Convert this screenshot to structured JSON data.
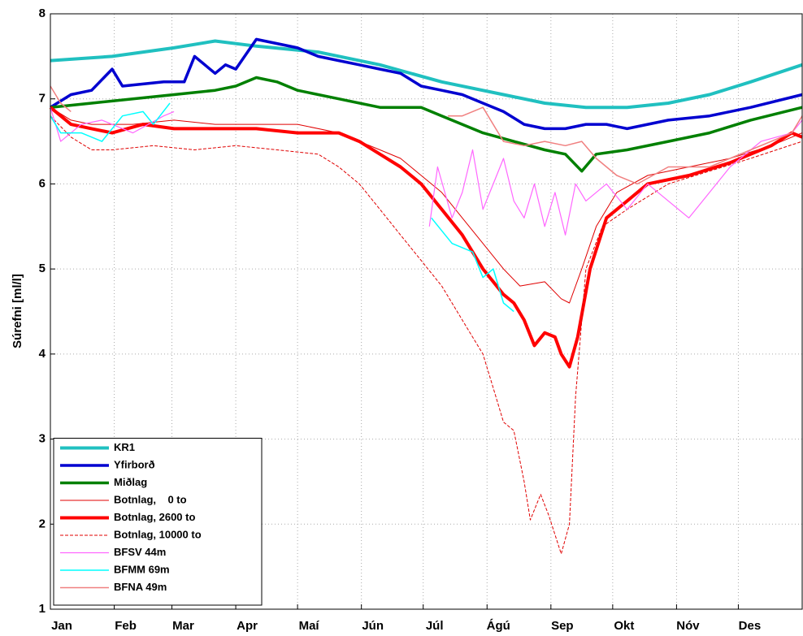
{
  "chart_data": {
    "type": "line",
    "ylabel": "Súrefni [ml/l]",
    "xlim": [
      0,
      365
    ],
    "xticks": [
      {
        "value": 0,
        "label": "Jan"
      },
      {
        "value": 31,
        "label": "Feb"
      },
      {
        "value": 59,
        "label": "Mar"
      },
      {
        "value": 90,
        "label": "Apr"
      },
      {
        "value": 120,
        "label": "Maí"
      },
      {
        "value": 151,
        "label": "Jún"
      },
      {
        "value": 181,
        "label": "Júl"
      },
      {
        "value": 212,
        "label": "Ágú"
      },
      {
        "value": 243,
        "label": "Sep"
      },
      {
        "value": 273,
        "label": "Okt"
      },
      {
        "value": 304,
        "label": "Nóv"
      },
      {
        "value": 334,
        "label": "Des"
      }
    ],
    "ylim": [
      1,
      8
    ],
    "yticks": [
      1,
      2,
      3,
      4,
      5,
      6,
      7,
      8
    ],
    "grid": true,
    "legend": "lower-left",
    "series": [
      {
        "name": "KR1",
        "color": "#20c0c0",
        "width": 4,
        "dash": "none",
        "x": [
          0,
          30,
          60,
          80,
          100,
          130,
          160,
          190,
          220,
          240,
          260,
          280,
          300,
          320,
          340,
          365
        ],
        "values": [
          7.45,
          7.5,
          7.6,
          7.68,
          7.62,
          7.55,
          7.4,
          7.2,
          7.05,
          6.95,
          6.9,
          6.9,
          6.95,
          7.05,
          7.2,
          7.4
        ]
      },
      {
        "name": "Yfirborð",
        "color": "#0000d0",
        "width": 3.5,
        "dash": "none",
        "x": [
          0,
          10,
          20,
          30,
          35,
          55,
          65,
          70,
          80,
          85,
          90,
          100,
          110,
          120,
          130,
          140,
          150,
          160,
          170,
          180,
          190,
          200,
          210,
          220,
          230,
          240,
          250,
          260,
          270,
          280,
          290,
          300,
          320,
          340,
          365
        ],
        "values": [
          6.9,
          7.05,
          7.1,
          7.35,
          7.15,
          7.2,
          7.2,
          7.5,
          7.3,
          7.4,
          7.35,
          7.7,
          7.65,
          7.6,
          7.5,
          7.45,
          7.4,
          7.35,
          7.3,
          7.15,
          7.1,
          7.05,
          6.95,
          6.85,
          6.7,
          6.65,
          6.65,
          6.7,
          6.7,
          6.65,
          6.7,
          6.75,
          6.8,
          6.9,
          7.05
        ]
      },
      {
        "name": "Miðlag",
        "color": "#008000",
        "width": 3.5,
        "dash": "none",
        "x": [
          0,
          20,
          40,
          60,
          80,
          90,
          100,
          110,
          120,
          140,
          160,
          180,
          190,
          210,
          225,
          240,
          250,
          258,
          265,
          280,
          300,
          320,
          340,
          365
        ],
        "values": [
          6.9,
          6.95,
          7.0,
          7.05,
          7.1,
          7.15,
          7.25,
          7.2,
          7.1,
          7.0,
          6.9,
          6.9,
          6.8,
          6.6,
          6.5,
          6.4,
          6.35,
          6.15,
          6.35,
          6.4,
          6.5,
          6.6,
          6.75,
          6.9
        ]
      },
      {
        "name": "Botnlag,    0 to",
        "color": "#e00000",
        "width": 1,
        "dash": "none",
        "x": [
          0,
          10,
          20,
          40,
          60,
          80,
          100,
          120,
          140,
          150,
          160,
          170,
          180,
          190,
          200,
          210,
          220,
          228,
          240,
          248,
          252,
          258,
          265,
          275,
          290,
          310,
          330,
          350,
          365
        ],
        "values": [
          6.9,
          6.75,
          6.7,
          6.7,
          6.75,
          6.7,
          6.7,
          6.7,
          6.6,
          6.5,
          6.4,
          6.3,
          6.1,
          5.9,
          5.6,
          5.3,
          5.0,
          4.8,
          4.85,
          4.65,
          4.6,
          5.0,
          5.5,
          5.9,
          6.1,
          6.2,
          6.3,
          6.45,
          6.6
        ]
      },
      {
        "name": "Botnlag, 2600 to",
        "color": "#ff0000",
        "width": 4,
        "dash": "none",
        "x": [
          0,
          10,
          20,
          30,
          45,
          60,
          80,
          100,
          120,
          140,
          150,
          160,
          170,
          180,
          190,
          200,
          210,
          215,
          220,
          225,
          230,
          235,
          240,
          245,
          248,
          252,
          256,
          262,
          270,
          280,
          290,
          310,
          330,
          350,
          360,
          365
        ],
        "values": [
          6.9,
          6.7,
          6.65,
          6.6,
          6.7,
          6.65,
          6.65,
          6.65,
          6.6,
          6.6,
          6.5,
          6.35,
          6.2,
          6.0,
          5.7,
          5.4,
          5.0,
          4.85,
          4.7,
          4.6,
          4.4,
          4.1,
          4.25,
          4.2,
          4.0,
          3.85,
          4.2,
          5.0,
          5.6,
          5.8,
          6.0,
          6.1,
          6.25,
          6.45,
          6.6,
          6.55
        ]
      },
      {
        "name": "Botnlag, 10000 to",
        "color": "#e00000",
        "width": 1,
        "dash": "4 2",
        "x": [
          0,
          10,
          20,
          30,
          50,
          70,
          90,
          110,
          130,
          140,
          150,
          160,
          170,
          180,
          190,
          200,
          210,
          215,
          220,
          225,
          230,
          233,
          238,
          242,
          248,
          252,
          255,
          260,
          268,
          280,
          300,
          320,
          340,
          365
        ],
        "values": [
          6.8,
          6.55,
          6.4,
          6.4,
          6.45,
          6.4,
          6.45,
          6.4,
          6.35,
          6.2,
          6.0,
          5.7,
          5.4,
          5.1,
          4.8,
          4.4,
          4.0,
          3.6,
          3.2,
          3.1,
          2.5,
          2.05,
          2.35,
          2.1,
          1.65,
          2.0,
          3.5,
          5.0,
          5.5,
          5.7,
          6.0,
          6.15,
          6.3,
          6.5
        ]
      },
      {
        "name": "BFSV 44m",
        "color": "#ff66ff",
        "width": 1.2,
        "dash": "none",
        "x": [
          0,
          5,
          15,
          25,
          40,
          55,
          60,
          120,
          184,
          188,
          195,
          200,
          205,
          210,
          215,
          220,
          225,
          230,
          235,
          240,
          245,
          250,
          255,
          260,
          270,
          280,
          290,
          300,
          310,
          320,
          330,
          345,
          360,
          365
        ],
        "values": [
          6.9,
          6.5,
          6.7,
          6.75,
          6.6,
          6.8,
          6.85,
          null,
          5.5,
          6.2,
          5.6,
          5.9,
          6.4,
          5.7,
          6.0,
          6.3,
          5.8,
          5.6,
          6.0,
          5.5,
          5.9,
          5.4,
          6.0,
          5.8,
          6.0,
          5.7,
          6.0,
          5.8,
          5.6,
          5.9,
          6.2,
          6.5,
          6.6,
          6.75
        ]
      },
      {
        "name": "BFMM 69m",
        "color": "#00ffff",
        "width": 1.5,
        "dash": "none",
        "x": [
          0,
          5,
          15,
          25,
          35,
          45,
          50,
          58,
          120,
          185,
          195,
          205,
          210,
          215,
          220,
          225
        ],
        "values": [
          6.8,
          6.6,
          6.6,
          6.5,
          6.8,
          6.85,
          6.7,
          6.95,
          null,
          5.6,
          5.3,
          5.2,
          4.9,
          5.0,
          4.6,
          4.5
        ]
      },
      {
        "name": "BFNA 49m",
        "color": "#f08080",
        "width": 1.5,
        "dash": "none",
        "x": [
          0,
          5,
          10,
          120,
          193,
          200,
          210,
          220,
          230,
          240,
          250,
          258,
          265,
          275,
          285,
          300,
          320,
          340,
          360,
          365
        ],
        "values": [
          7.15,
          6.95,
          6.85,
          null,
          6.8,
          6.8,
          6.9,
          6.5,
          6.45,
          6.5,
          6.45,
          6.5,
          6.3,
          6.1,
          6.0,
          6.2,
          6.2,
          6.4,
          6.6,
          6.8
        ]
      }
    ]
  }
}
